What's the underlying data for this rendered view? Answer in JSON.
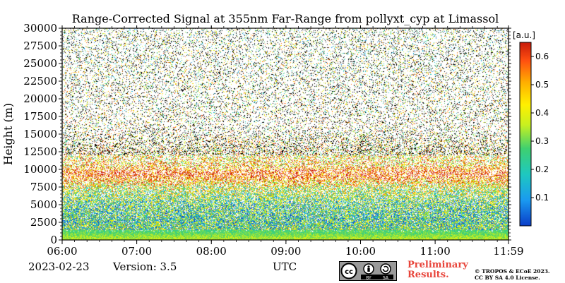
{
  "chart_data": {
    "type": "heatmap",
    "title": "Range-Corrected Signal at 355nm Far-Range from pollyxt_cyp at Limassol",
    "ylabel": "Height (m)",
    "xlabel": "UTC",
    "ylim": [
      0,
      30000
    ],
    "xlim": [
      "06:00",
      "11:59"
    ],
    "y_ticks": [
      "0",
      "2500",
      "5000",
      "7500",
      "10000",
      "12500",
      "15000",
      "17500",
      "20000",
      "22500",
      "25000",
      "27500",
      "30000"
    ],
    "x_ticks": [
      "06:00",
      "07:00",
      "08:00",
      "09:00",
      "10:00",
      "11:00",
      "11:59"
    ],
    "colorbar": {
      "unit": "[a.u.]",
      "range": [
        0.0,
        0.65
      ],
      "ticks": [
        "0.1",
        "0.2",
        "0.3",
        "0.4",
        "0.5",
        "0.6"
      ],
      "colormap": [
        "#0a3dc8",
        "#1a9af0",
        "#1ec8c0",
        "#3ed070",
        "#c8f020",
        "#fff000",
        "#ffb000",
        "#ff5010",
        "#c81a0a"
      ]
    },
    "signal_profile": [
      {
        "height_m": 0,
        "value": 0.33
      },
      {
        "height_m": 500,
        "value": 0.3
      },
      {
        "height_m": 1000,
        "value": 0.26
      },
      {
        "height_m": 2000,
        "value": 0.22
      },
      {
        "height_m": 3000,
        "value": 0.2
      },
      {
        "height_m": 5000,
        "value": 0.22
      },
      {
        "height_m": 7500,
        "value": 0.35
      },
      {
        "height_m": 9500,
        "value": 0.62
      },
      {
        "height_m": 10500,
        "value": 0.45
      },
      {
        "height_m": 12500,
        "value": 0.4
      },
      {
        "height_m": 15000,
        "value": 0.38
      },
      {
        "height_m": 20000,
        "value": 0.35
      },
      {
        "height_m": 30000,
        "value": 0.3
      }
    ]
  },
  "footer": {
    "date": "2023-02-23",
    "version": "Version: 3.5",
    "preliminary": "Preliminary Results.",
    "preliminary_line1": "Preliminary",
    "preliminary_line2": "Results.",
    "copyright_line1": "© TROPOS & ECoE 2023.",
    "copyright_line2": "CC BY SA 4.0 License.",
    "license_badge_text": [
      "BY",
      "SA"
    ]
  }
}
